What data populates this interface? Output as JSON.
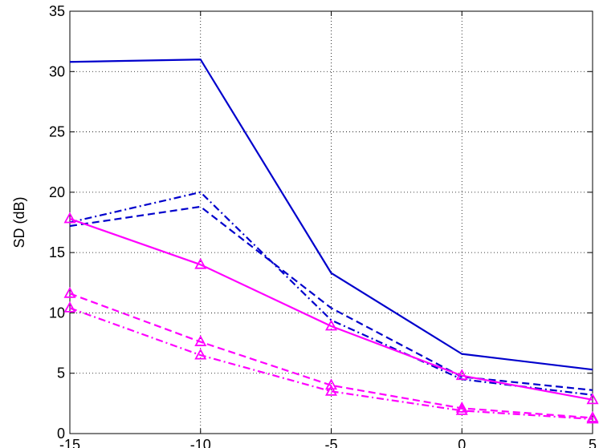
{
  "chart_data": {
    "type": "line",
    "title": "",
    "xlabel": "",
    "ylabel": "SD (dB)",
    "x": [
      -15,
      -10,
      -5,
      0,
      5
    ],
    "xlim": [
      -15,
      5
    ],
    "ylim": [
      0,
      35
    ],
    "xticks": [
      -15,
      -10,
      -5,
      0,
      5
    ],
    "xtick_labels": [
      "-15",
      "-10",
      "-5",
      "0",
      "5"
    ],
    "yticks": [
      0,
      5,
      10,
      15,
      20,
      25,
      30,
      35
    ],
    "ytick_labels": [
      "0",
      "5",
      "10",
      "15",
      "20",
      "25",
      "30",
      "35"
    ],
    "grid": true,
    "series": [
      {
        "color": "#0000cc",
        "linestyle": "solid",
        "marker": "none",
        "values": [
          30.8,
          31.0,
          13.3,
          6.6,
          5.3
        ]
      },
      {
        "color": "#0000cc",
        "linestyle": "dashed",
        "marker": "none",
        "values": [
          17.2,
          18.8,
          10.4,
          4.7,
          3.6
        ]
      },
      {
        "color": "#0000cc",
        "linestyle": "dashdot",
        "marker": "none",
        "values": [
          17.5,
          20.0,
          9.4,
          4.5,
          3.2
        ]
      },
      {
        "color": "#ff00ff",
        "linestyle": "solid",
        "marker": "triangle",
        "values": [
          17.8,
          14.0,
          8.9,
          4.8,
          2.8
        ]
      },
      {
        "color": "#ff00ff",
        "linestyle": "dashed",
        "marker": "triangle",
        "values": [
          11.6,
          7.6,
          4.0,
          2.1,
          1.3
        ]
      },
      {
        "color": "#ff00ff",
        "linestyle": "dashdot",
        "marker": "triangle",
        "values": [
          10.4,
          6.5,
          3.5,
          1.9,
          1.2
        ]
      }
    ]
  }
}
